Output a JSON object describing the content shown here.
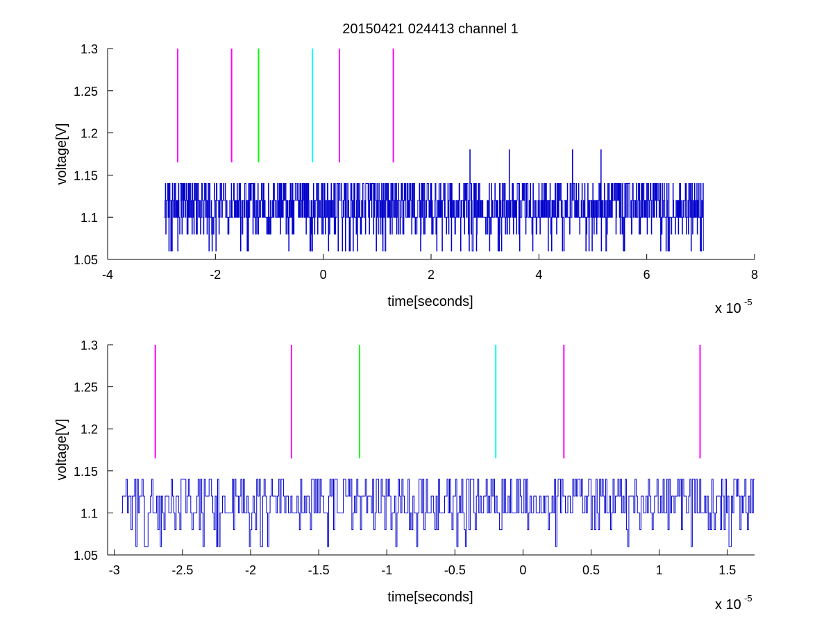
{
  "figure": {
    "title": "20150421 024413 channel 1",
    "colors": {
      "signal": "#0000cc",
      "marker_magenta": "#ff00ff",
      "marker_green": "#00ff00",
      "marker_cyan": "#00ffff",
      "axes": "#000000"
    }
  },
  "chart_data": [
    {
      "type": "line",
      "title": "20150421 024413 channel 1",
      "xlabel": "time[seconds]",
      "ylabel": "voltage[V]",
      "x_exponent_base": "x 10",
      "x_exponent_power": "-5",
      "xlim": [
        -4,
        8
      ],
      "ylim": [
        1.05,
        1.3
      ],
      "xticks": [
        -4,
        -2,
        0,
        2,
        4,
        6,
        8
      ],
      "xtick_labels": [
        "-4",
        "-2",
        "0",
        "2",
        "4",
        "6",
        "8"
      ],
      "yticks": [
        1.05,
        1.1,
        1.15,
        1.2,
        1.25,
        1.3
      ],
      "ytick_labels": [
        "1.05",
        "1.1",
        "1.15",
        "1.2",
        "1.25",
        "1.3"
      ],
      "grid": false,
      "signal": {
        "x_range": [
          -2.95,
          7.05
        ],
        "levels": [
          1.06,
          1.08,
          1.1,
          1.12,
          1.14
        ],
        "baseline": 1.1,
        "spikes": [
          {
            "x": 2.72,
            "y": 1.18
          },
          {
            "x": 3.45,
            "y": 1.18
          },
          {
            "x": 4.62,
            "y": 1.18
          },
          {
            "x": 5.15,
            "y": 1.18
          }
        ]
      },
      "markers": [
        {
          "x": -2.7,
          "color": "magenta",
          "y_range": [
            1.165,
            1.3
          ]
        },
        {
          "x": -1.7,
          "color": "magenta",
          "y_range": [
            1.165,
            1.3
          ]
        },
        {
          "x": -1.2,
          "color": "green",
          "y_range": [
            1.165,
            1.3
          ]
        },
        {
          "x": -0.2,
          "color": "cyan",
          "y_range": [
            1.165,
            1.3
          ]
        },
        {
          "x": 0.3,
          "color": "magenta",
          "y_range": [
            1.165,
            1.3
          ]
        },
        {
          "x": 1.3,
          "color": "magenta",
          "y_range": [
            1.165,
            1.3
          ]
        }
      ]
    },
    {
      "type": "line",
      "title": "",
      "xlabel": "time[seconds]",
      "ylabel": "voltage[V]",
      "x_exponent_base": "x 10",
      "x_exponent_power": "-5",
      "xlim": [
        -3.05,
        1.7
      ],
      "ylim": [
        1.05,
        1.3
      ],
      "xticks": [
        -3,
        -2.5,
        -2,
        -1.5,
        -1,
        -0.5,
        0,
        0.5,
        1,
        1.5
      ],
      "xtick_labels": [
        "-3",
        "-2.5",
        "-2",
        "-1.5",
        "-1",
        "-0.5",
        "0",
        "0.5",
        "1",
        "1.5"
      ],
      "yticks": [
        1.05,
        1.1,
        1.15,
        1.2,
        1.25,
        1.3
      ],
      "ytick_labels": [
        "1.05",
        "1.1",
        "1.15",
        "1.2",
        "1.25",
        "1.3"
      ],
      "grid": false,
      "signal": {
        "x_range": [
          -2.95,
          1.7
        ],
        "levels": [
          1.06,
          1.08,
          1.1,
          1.12,
          1.14
        ],
        "baseline": 1.1,
        "spikes": []
      },
      "markers": [
        {
          "x": -2.7,
          "color": "magenta",
          "y_range": [
            1.165,
            1.3
          ]
        },
        {
          "x": -1.7,
          "color": "magenta",
          "y_range": [
            1.165,
            1.3
          ]
        },
        {
          "x": -1.2,
          "color": "green",
          "y_range": [
            1.165,
            1.3
          ]
        },
        {
          "x": -0.2,
          "color": "cyan",
          "y_range": [
            1.165,
            1.3
          ]
        },
        {
          "x": 0.3,
          "color": "magenta",
          "y_range": [
            1.165,
            1.3
          ]
        },
        {
          "x": 1.3,
          "color": "magenta",
          "y_range": [
            1.165,
            1.3
          ]
        }
      ]
    }
  ]
}
